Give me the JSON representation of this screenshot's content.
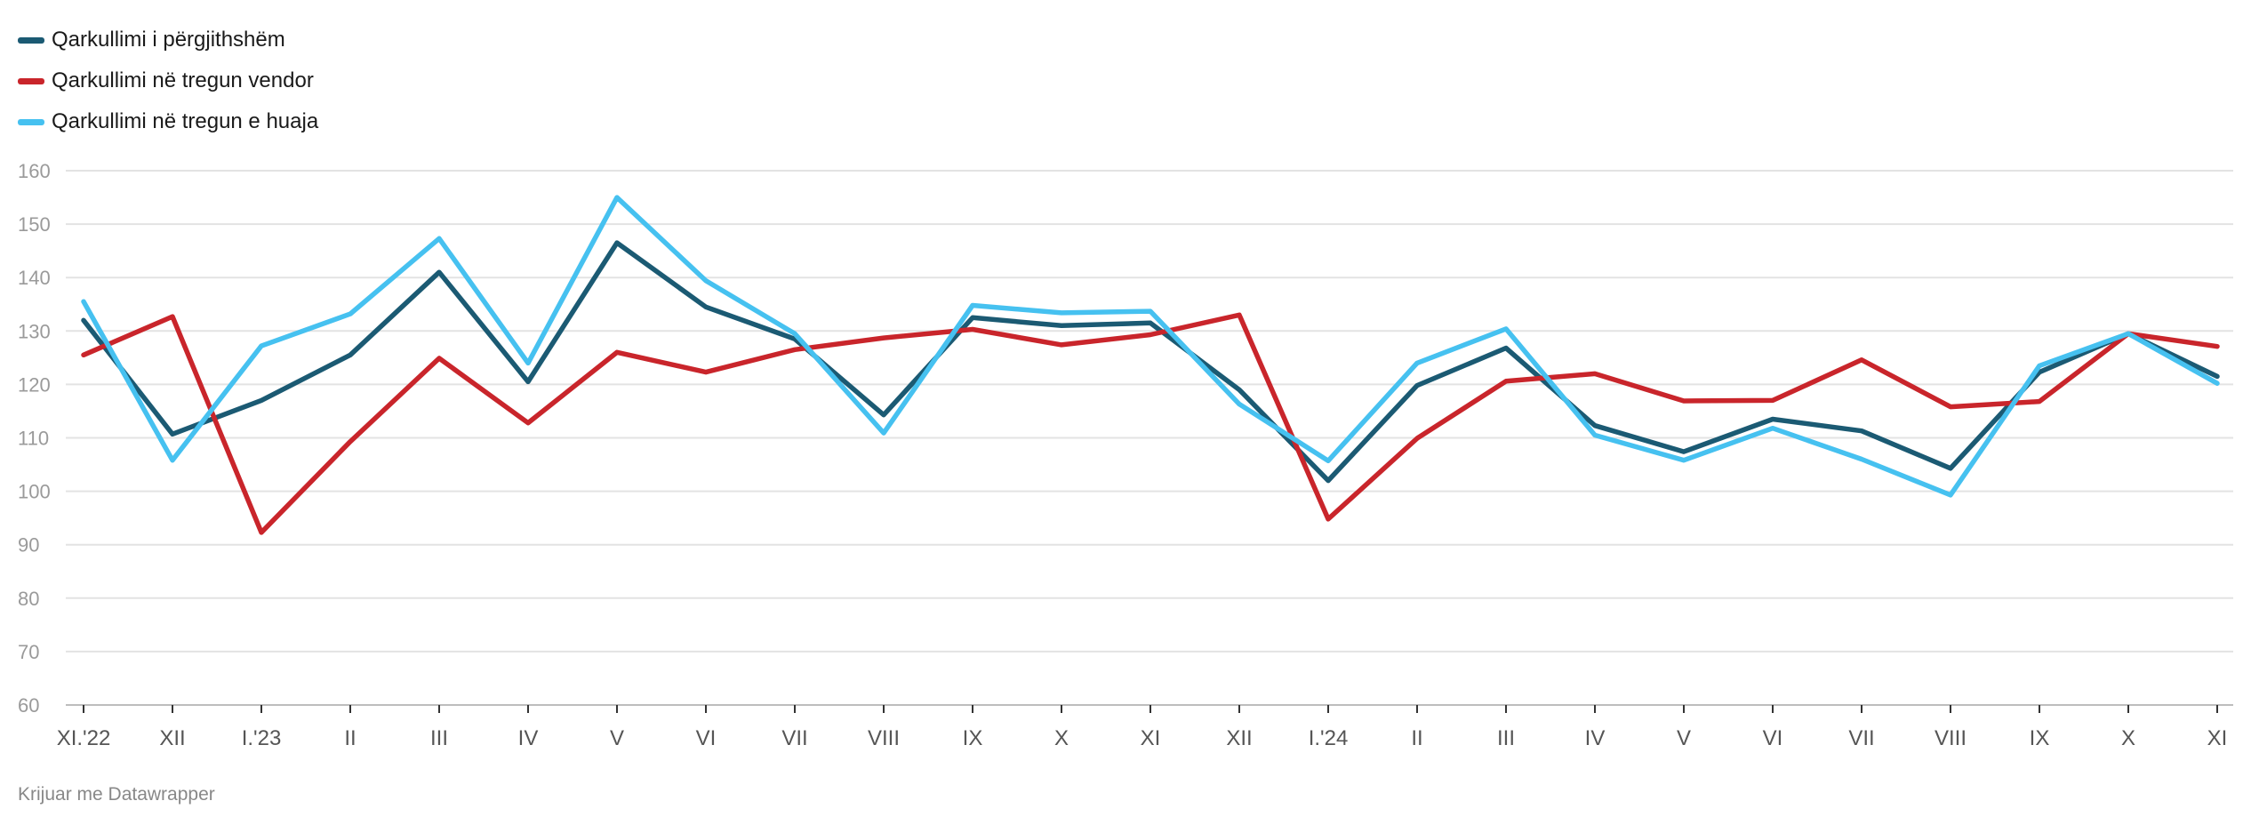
{
  "chart_data": {
    "type": "line",
    "title": "",
    "xlabel": "",
    "ylabel": "",
    "ylim": [
      60,
      160
    ],
    "yticks": [
      60,
      70,
      80,
      90,
      100,
      110,
      120,
      130,
      140,
      150,
      160
    ],
    "grid": true,
    "legend_position": "top-left",
    "categories": [
      "XI.'22",
      "XII",
      "I.'23",
      "II",
      "III",
      "IV",
      "V",
      "VI",
      "VII",
      "VIII",
      "IX",
      "X",
      "XI",
      "XII",
      "I.'24",
      "II",
      "III",
      "IV",
      "V",
      "VI",
      "VII",
      "VIII",
      "IX",
      "X",
      "XI"
    ],
    "series": [
      {
        "name": "Qarkullimi i përgjithshëm",
        "color": "#1b5a73",
        "values": [
          132,
          110.7,
          117,
          125.5,
          141,
          120.5,
          146.5,
          134.5,
          128.5,
          114.3,
          132.5,
          131,
          131.5,
          119,
          102,
          119.8,
          126.8,
          112.3,
          107.4,
          113.5,
          111.3,
          104.3,
          122.3,
          129.5,
          121.5
        ]
      },
      {
        "name": "Qarkullimi në tregun vendor",
        "color": "#c9252b",
        "values": [
          125.5,
          132.7,
          92.3,
          109.3,
          124.9,
          112.8,
          126,
          122.3,
          126.5,
          128.7,
          130.3,
          127.4,
          129.3,
          133,
          94.8,
          109.9,
          120.6,
          122,
          116.9,
          117,
          124.6,
          115.8,
          116.8,
          129.5,
          127.1
        ]
      },
      {
        "name": "Qarkullimi në tregun e huaja",
        "color": "#46c1f0",
        "values": [
          135.5,
          105.8,
          127.2,
          133.2,
          147.3,
          124,
          155,
          139.4,
          129.5,
          110.9,
          134.8,
          133.4,
          133.7,
          116.3,
          105.7,
          124,
          130.4,
          110.5,
          105.8,
          111.8,
          106,
          99.3,
          123.5,
          129.5,
          120.2
        ]
      }
    ]
  },
  "footer": {
    "credit": "Krijuar me Datawrapper"
  }
}
